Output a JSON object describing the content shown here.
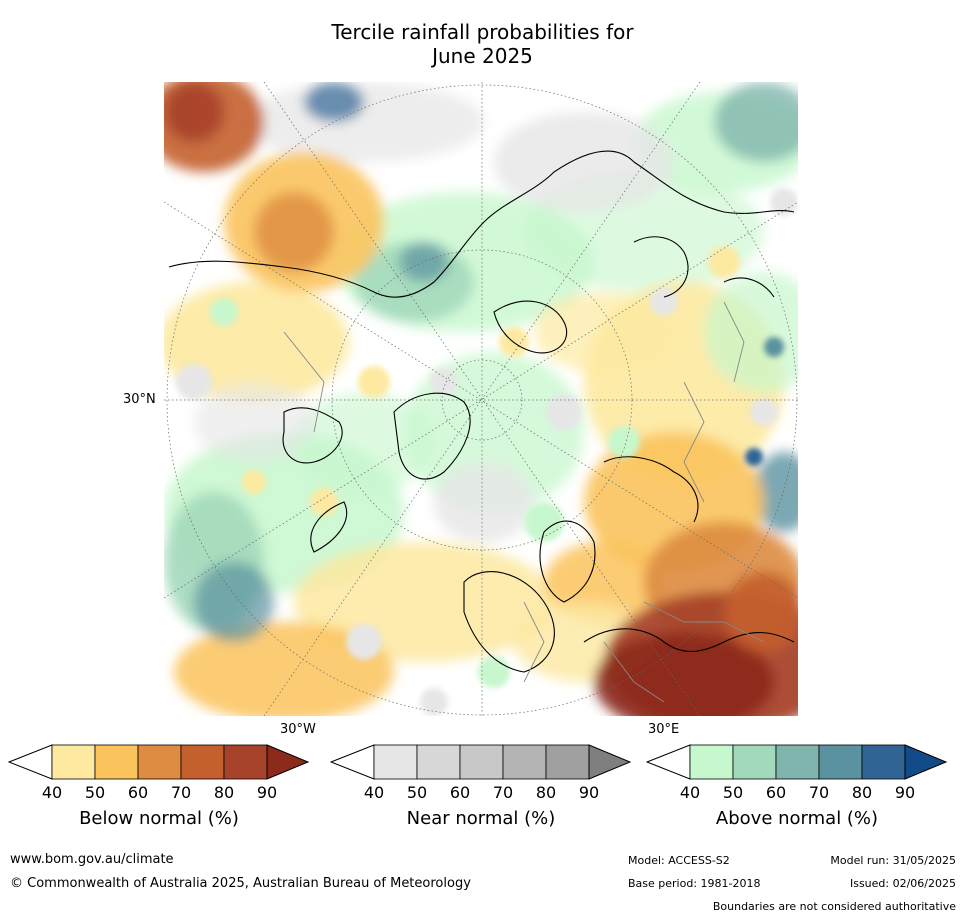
{
  "title_line1": "Tercile rainfall probabilities for",
  "title_line2": "June 2025",
  "map": {
    "lat_label": "30°N",
    "lon_label_west": "30°W",
    "lon_label_east": "30°E",
    "region": "Northern hemisphere polar stereographic view"
  },
  "legends": [
    {
      "label": "Below normal (%)",
      "ticks": [
        "40",
        "50",
        "60",
        "70",
        "80",
        "90"
      ],
      "colors": [
        "#ffffff",
        "#fde9a0",
        "#fbc35c",
        "#dd8c41",
        "#c45f2e",
        "#a8432b",
        "#8c2a1c"
      ]
    },
    {
      "label": "Near normal (%)",
      "ticks": [
        "40",
        "50",
        "60",
        "70",
        "80",
        "90"
      ],
      "colors": [
        "#ffffff",
        "#e6e6e6",
        "#d7d7d7",
        "#c8c8c8",
        "#b4b4b4",
        "#a0a0a0",
        "#7f7f7f"
      ]
    },
    {
      "label": "Above normal (%)",
      "ticks": [
        "40",
        "50",
        "60",
        "70",
        "80",
        "90"
      ],
      "colors": [
        "#ffffff",
        "#c7f7cd",
        "#a3d9bb",
        "#7fb5ad",
        "#5a92a0",
        "#2f6495",
        "#124b87"
      ]
    }
  ],
  "footer": {
    "website": "www.bom.gov.au/climate",
    "copyright": "© Commonwealth of Australia 2025, Australian Bureau of Meteorology",
    "model": "Model: ACCESS-S2",
    "base_period": "Base period: 1981-2018",
    "model_run": "Model run: 31/05/2025",
    "issued": "Issued: 02/06/2025",
    "disclaimer": "Boundaries are not considered authoritative"
  }
}
